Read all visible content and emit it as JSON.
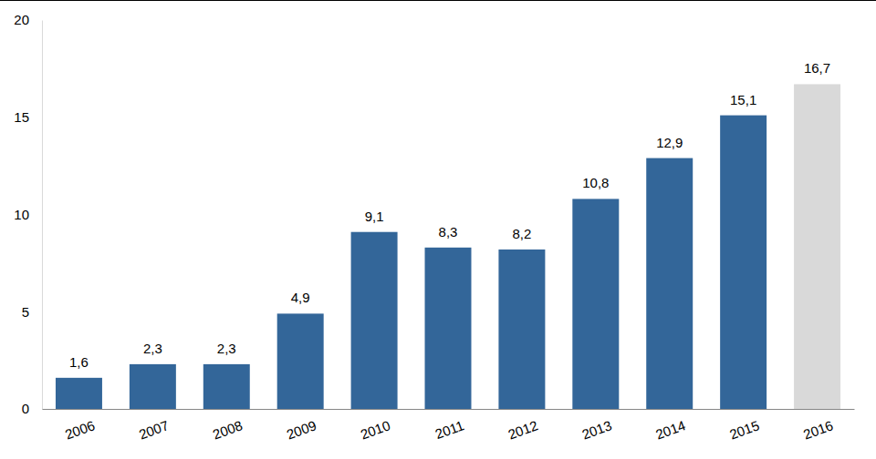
{
  "chart_data": {
    "type": "bar",
    "categories": [
      "2006",
      "2007",
      "2008",
      "2009",
      "2010",
      "2011",
      "2012",
      "2013",
      "2014",
      "2015",
      "2016"
    ],
    "values": [
      1.6,
      2.3,
      2.3,
      4.9,
      9.1,
      8.3,
      8.2,
      10.8,
      12.9,
      15.1,
      16.7
    ],
    "value_labels": [
      "1,6",
      "2,3",
      "2,3",
      "4,9",
      "9,1",
      "8,3",
      "8,2",
      "10,8",
      "12,9",
      "15,1",
      "16,7"
    ],
    "colors": [
      "#336699",
      "#336699",
      "#336699",
      "#336699",
      "#336699",
      "#336699",
      "#336699",
      "#336699",
      "#336699",
      "#336699",
      "#d9d9d9"
    ],
    "ylim": [
      0,
      20
    ],
    "yticks": [
      0,
      5,
      10,
      15,
      20
    ],
    "grid": false,
    "data_labels": true
  }
}
